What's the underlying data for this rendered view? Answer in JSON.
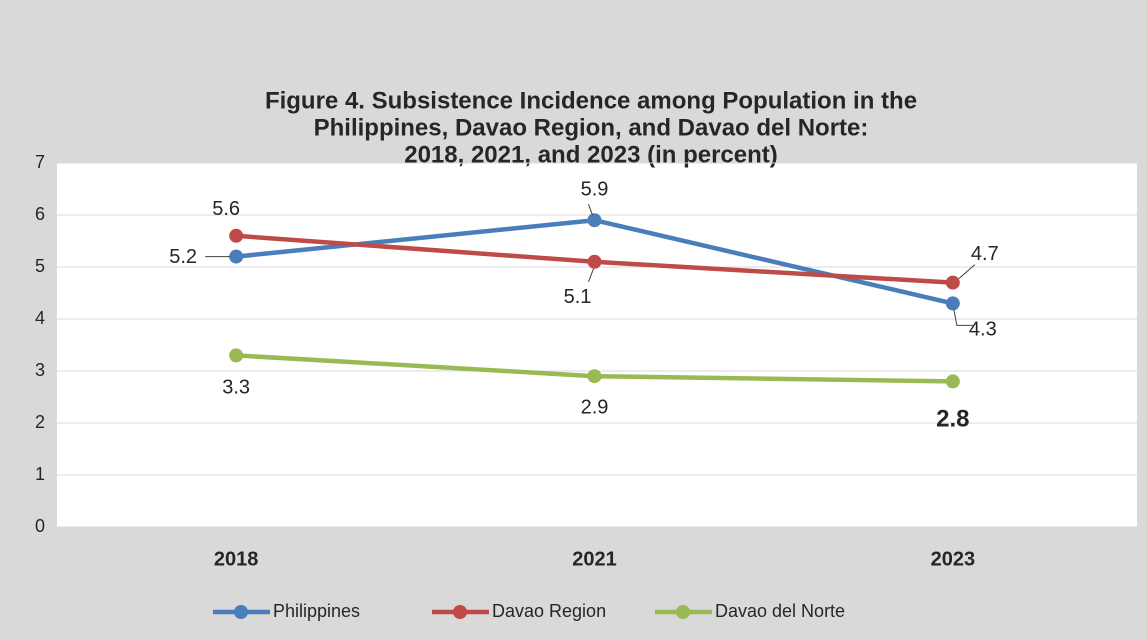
{
  "chart_data": {
    "type": "line",
    "title": [
      "Figure 4. Subsistence Incidence among Population in the",
      "Philippines, Davao Region, and Davao del Norte:",
      "2018, 2021, and 2023 (in percent)"
    ],
    "categories": [
      "2018",
      "2021",
      "2023"
    ],
    "series": [
      {
        "name": "Philippines",
        "color": "#4a7ebb",
        "values": [
          5.2,
          5.9,
          4.3
        ]
      },
      {
        "name": "Davao Region",
        "color": "#be4b48",
        "values": [
          5.6,
          5.1,
          4.7
        ]
      },
      {
        "name": "Davao del Norte",
        "color": "#98b954",
        "values": [
          3.3,
          2.9,
          2.8
        ]
      }
    ],
    "ylim": [
      0,
      7
    ],
    "yticks": [
      0,
      1,
      2,
      3,
      4,
      5,
      6,
      7
    ],
    "grid": true,
    "legend": "bottom"
  }
}
